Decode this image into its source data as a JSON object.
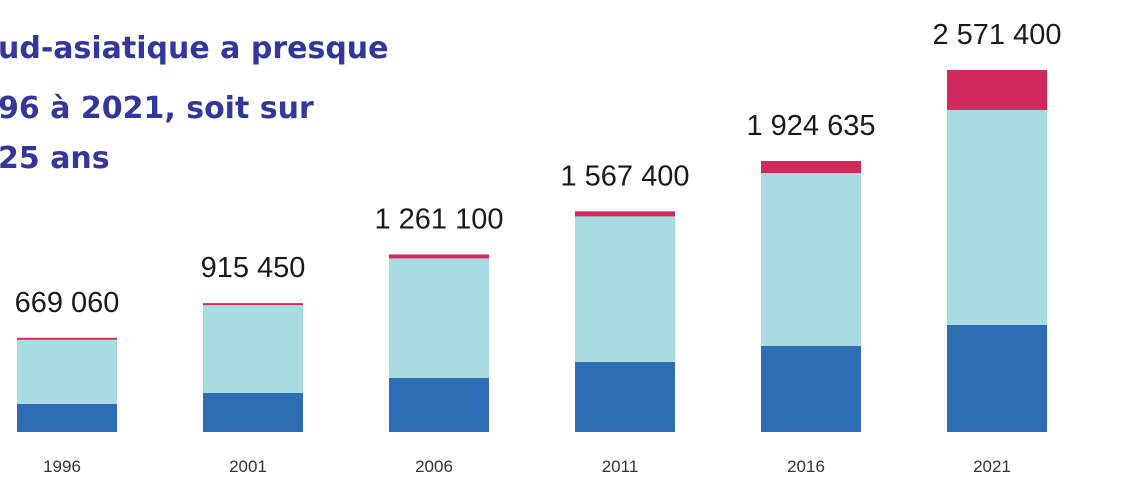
{
  "chart_data": {
    "type": "bar",
    "stacked": true,
    "title_lines": [
      "ud-asiatique a presque",
      "96 à 2021, soit sur",
      "25 ans"
    ],
    "categories": [
      "1996",
      "2001",
      "2006",
      "2011",
      "2016",
      "2021"
    ],
    "series": [
      {
        "color": "#2e6db4",
        "values": [
          200000,
          277000,
          384000,
          497000,
          611000,
          760000
        ]
      },
      {
        "color": "#a8dbe2",
        "values": [
          455060,
          624450,
          849100,
          1034400,
          1228635,
          1527400
        ]
      },
      {
        "color": "#cf2a5b",
        "values": [
          14000,
          14000,
          28000,
          36000,
          85000,
          284000
        ]
      }
    ],
    "totals": [
      669060,
      915450,
      1261100,
      1567400,
      1924635,
      2571400
    ],
    "total_labels": [
      "669 060",
      "915 450",
      "1 261 100",
      "1 567 400",
      "1 924 635",
      "2 571 400"
    ]
  }
}
